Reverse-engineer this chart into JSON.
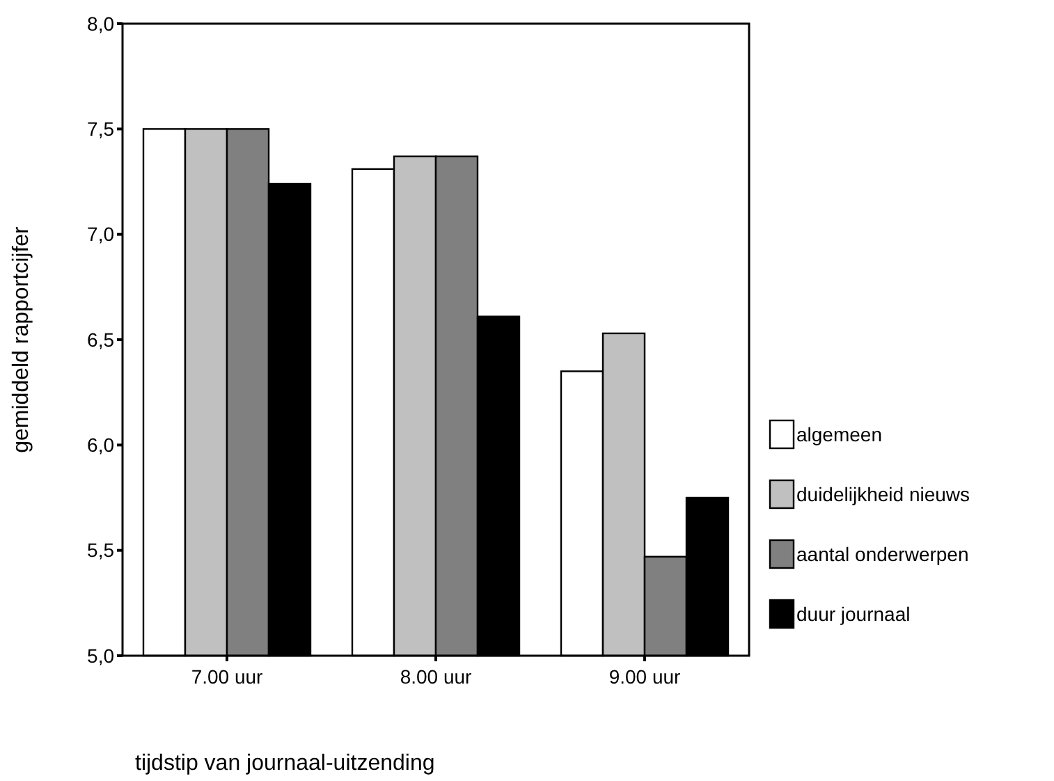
{
  "chart_data": {
    "type": "bar",
    "xlabel": "tijdstip van journaal-uitzending",
    "ylabel": "gemiddeld rapportcijfer",
    "categories": [
      "7.00 uur",
      "8.00 uur",
      "9.00 uur"
    ],
    "series": [
      {
        "name": "algemeen",
        "color": "#ffffff",
        "values": [
          7.5,
          7.31,
          6.35
        ]
      },
      {
        "name": "duidelijkheid nieuws",
        "color": "#c0c0c0",
        "values": [
          7.5,
          7.37,
          6.53
        ]
      },
      {
        "name": "aantal onderwerpen",
        "color": "#808080",
        "values": [
          7.5,
          7.37,
          5.47
        ]
      },
      {
        "name": "duur journaal",
        "color": "#000000",
        "values": [
          7.24,
          6.61,
          5.75
        ]
      }
    ],
    "ylim": [
      5,
      8
    ],
    "yticks": [
      {
        "value": 5,
        "label": "5,0"
      },
      {
        "value": 5.5,
        "label": "5,5"
      },
      {
        "value": 6,
        "label": "6,0"
      },
      {
        "value": 6.5,
        "label": "6,5"
      },
      {
        "value": 7,
        "label": "7,0"
      },
      {
        "value": 7.5,
        "label": "7,5"
      },
      {
        "value": 8,
        "label": "8,0"
      }
    ],
    "grid": false,
    "legend": "right"
  }
}
